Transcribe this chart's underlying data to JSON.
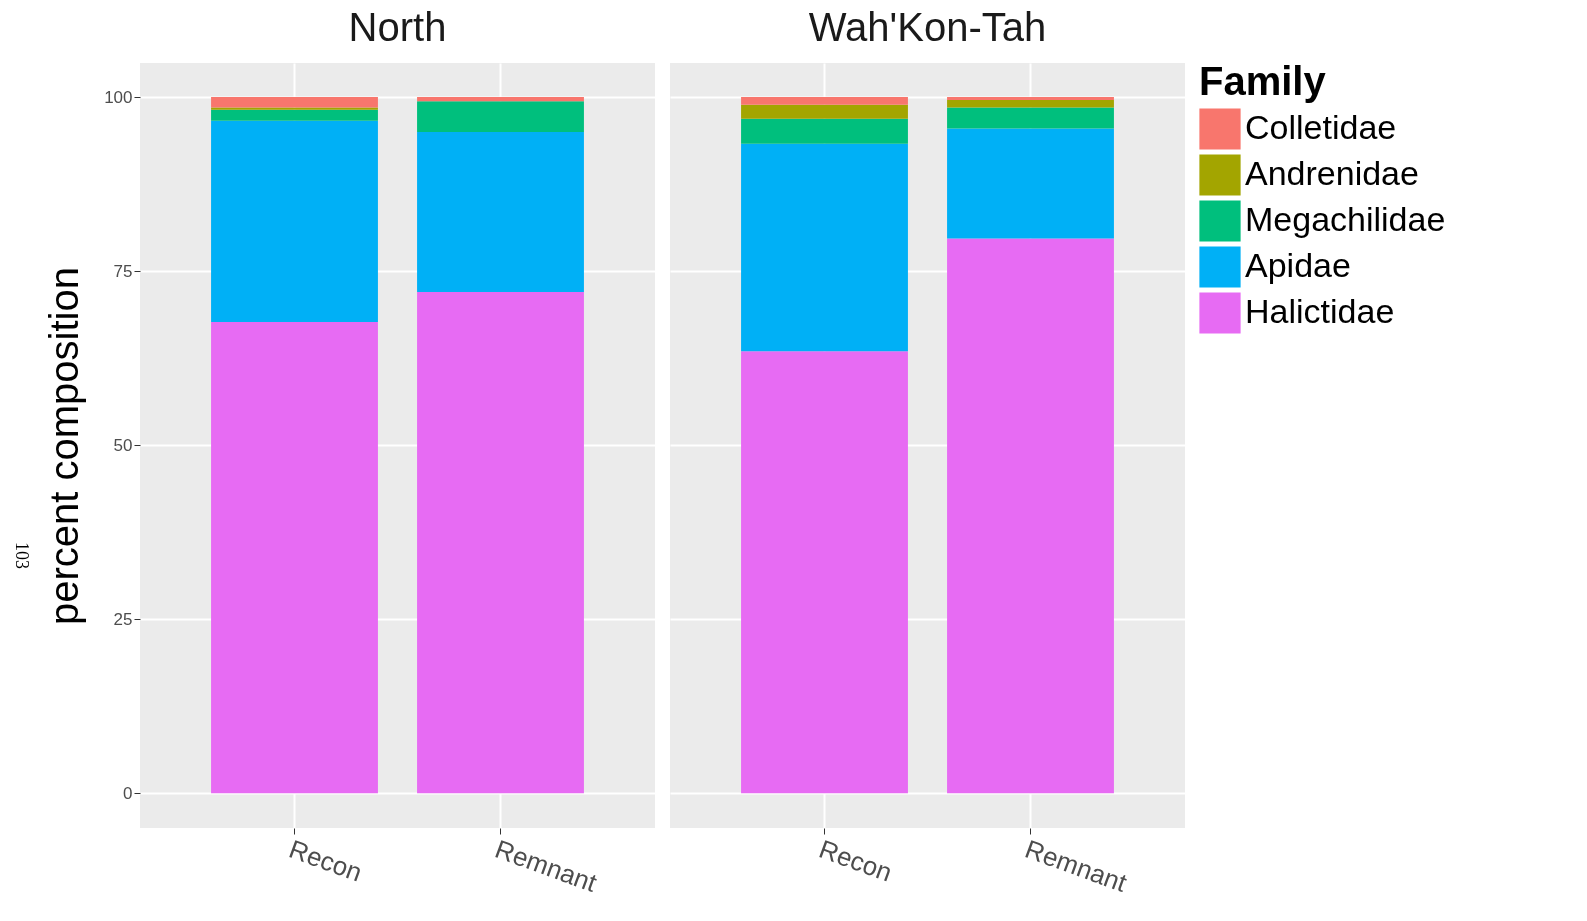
{
  "chart_data": [
    {
      "type": "bar",
      "stacked": true,
      "title": "North",
      "ylabel": "percent composition",
      "categories": [
        "Recon",
        "Remnant"
      ],
      "ylim": [
        -5,
        104.9
      ],
      "yticks": [
        0,
        25,
        50,
        75,
        100
      ],
      "grid": true,
      "legend": false,
      "annotations": [
        "103"
      ],
      "series": [
        {
          "color": "#e76bf3",
          "values": [
            67.7,
            72.0
          ]
        },
        {
          "color": "#00b0f6",
          "values": [
            28.9,
            23.0
          ]
        },
        {
          "color": "#00bf7d",
          "values": [
            1.6,
            4.4
          ]
        },
        {
          "color": "#a3a500",
          "values": [
            0.3,
            0
          ]
        },
        {
          "color": "#f8766d",
          "values": [
            1.5,
            0.6
          ]
        }
      ]
    },
    {
      "type": "bar",
      "stacked": true,
      "title": "Wah'Kon-Tah",
      "categories": [
        "Recon",
        "Remnant"
      ],
      "ylim": [
        -5,
        104.9
      ],
      "yticks": [
        0,
        25,
        50,
        75,
        100
      ],
      "tick_labels": "x",
      "grid": true,
      "legend": "right",
      "legend_title": "Family",
      "series": [
        {
          "name": "Halictidae",
          "color": "#e76bf3",
          "values": [
            63.5,
            79.7
          ]
        },
        {
          "name": "Apidae",
          "color": "#00b0f6",
          "values": [
            29.8,
            15.8
          ]
        },
        {
          "name": "Megachilidae",
          "color": "#00bf7d",
          "values": [
            3.6,
            3.0
          ]
        },
        {
          "name": "Andrenidae",
          "color": "#a3a500",
          "values": [
            2.0,
            1.1
          ]
        },
        {
          "name": "Colletidae",
          "color": "#f8766d",
          "values": [
            1.1,
            0.4
          ]
        }
      ]
    }
  ]
}
